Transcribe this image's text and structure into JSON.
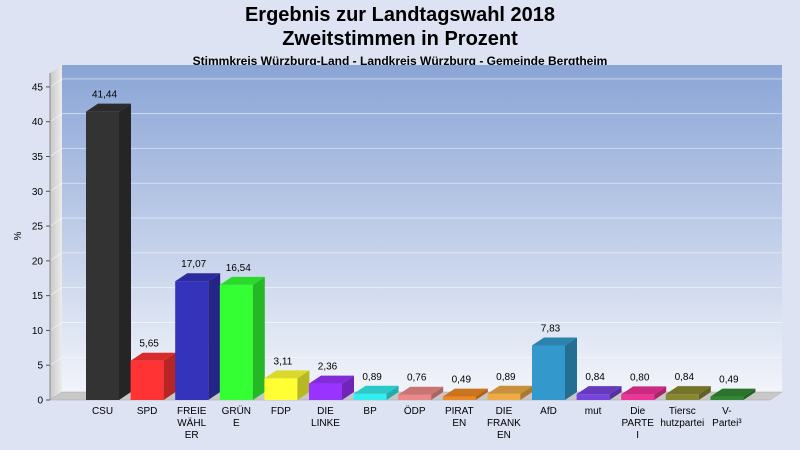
{
  "title": "Ergebnis zur Landtagswahl 2018",
  "subtitle": "Zweitstimmen in Prozent",
  "subtitle2": "Stimmkreis Würzburg-Land - Landkreis Würzburg - Gemeinde Bergtheim",
  "chart_data": {
    "type": "bar",
    "title": "Ergebnis zur Landtagswahl 2018",
    "xlabel": "",
    "ylabel": "%",
    "ylim": [
      0,
      47
    ],
    "yticks": [
      0,
      5,
      10,
      15,
      20,
      25,
      30,
      35,
      40,
      45
    ],
    "grid": true,
    "categories": [
      [
        "CSU"
      ],
      [
        "SPD"
      ],
      [
        "FREIE",
        "WÄHL",
        "ER"
      ],
      [
        "GRÜN",
        "E"
      ],
      [
        "FDP"
      ],
      [
        "DIE",
        "LINKE"
      ],
      [
        "BP"
      ],
      [
        "ÖDP"
      ],
      [
        "PIRAT",
        "EN"
      ],
      [
        "DIE",
        "FRANK",
        "EN"
      ],
      [
        "AfD"
      ],
      [
        "mut"
      ],
      [
        "Die",
        "PARTE",
        "I"
      ],
      [
        "Tiersc",
        "hutzpartei"
      ],
      [
        "V-",
        "Partei³"
      ]
    ],
    "values": [
      41.44,
      5.65,
      17.07,
      16.54,
      3.11,
      2.36,
      0.89,
      0.76,
      0.49,
      0.89,
      7.83,
      0.84,
      0.8,
      0.84,
      0.49
    ],
    "value_labels": [
      "41,44",
      "5,65",
      "17,07",
      "16,54",
      "3,11",
      "2,36",
      "0,89",
      "0,76",
      "0,49",
      "0,89",
      "7,83",
      "0,84",
      "0,80",
      "0,84",
      "0,49"
    ],
    "colors": [
      "#333333",
      "#ff3333",
      "#3333bb",
      "#33ff33",
      "#ffff33",
      "#9933ff",
      "#33eeee",
      "#ee8888",
      "#ee8822",
      "#eeaa44",
      "#3399cc",
      "#7744dd",
      "#ee3399",
      "#888833",
      "#338833"
    ]
  }
}
